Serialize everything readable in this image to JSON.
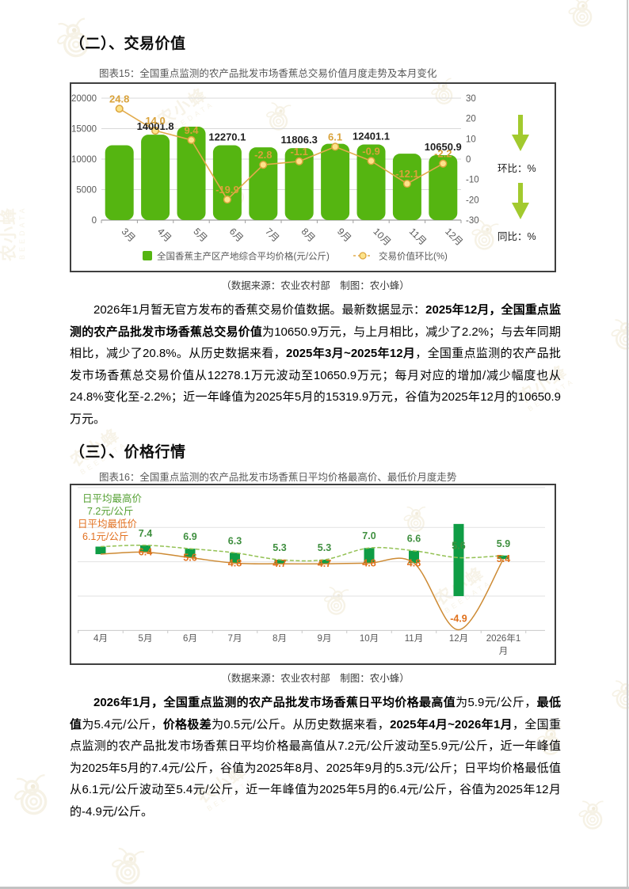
{
  "page": {
    "heading_trade": "（二）、交易价值",
    "heading_price": "（三）、价格行情",
    "source_line": "（数据来源：农业农村部　制图：农小蜂）",
    "watermark_text": "农小蜂",
    "watermark_sub": "BEEDATA"
  },
  "chart15": {
    "title": "图表15：全国重点监测的农产品批发市场香蕉总交易价值月度走势及本月变化",
    "side_mom": "环比：%",
    "side_yoy": "同比：%"
  },
  "chart16": {
    "title": "图表16：全国重点监测的农产品批发市场香蕉日平均价格最高价、最低价月度走势"
  },
  "chart_data": [
    {
      "id": "chart15",
      "type": "bar",
      "title": "全国重点监测的农产品批发市场香蕉总交易价值月度走势及本月变化",
      "categories": [
        "3月",
        "4月",
        "5月",
        "6月",
        "7月",
        "8月",
        "9月",
        "10月",
        "11月",
        "12月"
      ],
      "series": [
        {
          "name": "全国香蕉主产区产地综合平均价格(元/公斤)",
          "type": "bar",
          "axis": "left",
          "values": [
            12278.1,
            14001.8,
            15319.9,
            12270.1,
            11930,
            11806.3,
            12510,
            12401.1,
            10890,
            10650.9
          ],
          "labels": [
            null,
            "14001.8",
            null,
            "12270.1",
            null,
            "11806.3",
            null,
            "12401.1",
            null,
            "10650.9"
          ],
          "color": "#55b511"
        },
        {
          "name": "交易价值环比(%)",
          "type": "line",
          "axis": "right",
          "values": [
            24.8,
            14.0,
            9.4,
            -19.9,
            -2.8,
            -1.1,
            6.1,
            -0.9,
            -12.1,
            -2.2
          ],
          "labels": [
            "24.8",
            "14.0",
            "9.4",
            "-19.9",
            "-2.8",
            "-1.1",
            "6.1",
            "-0.9",
            "-12.1",
            "-2.2"
          ],
          "color": "#e2ab4c",
          "marker_fill": "#fce38a",
          "marker_stroke": "#dca53e",
          "label_color": "#d9a23a"
        }
      ],
      "left_axis": {
        "ticks": [
          20000,
          15000,
          10000,
          5000,
          0
        ],
        "min": 0,
        "max": 20000
      },
      "right_axis": {
        "ticks": [
          30,
          20,
          10,
          0,
          -10,
          -20,
          -30
        ],
        "min": -30,
        "max": 30
      },
      "legend_position": "bottom"
    },
    {
      "id": "chart16",
      "type": "line",
      "title": "全国重点监测的农产品批发市场香蕉日平均价格最高价、最低价月度走势",
      "categories": [
        "4月",
        "5月",
        "6月",
        "7月",
        "8月",
        "9月",
        "10月",
        "11月",
        "12月",
        "2026年1月"
      ],
      "series": [
        {
          "name": "日平均最高价",
          "values": [
            7.2,
            7.4,
            6.9,
            6.3,
            5.3,
            5.3,
            7.0,
            6.6,
            5.6,
            5.9
          ],
          "labels": [
            null,
            "7.4",
            "6.9",
            "6.3",
            "5.3",
            "5.3",
            "7.0",
            "6.6",
            "5.6",
            "5.9"
          ],
          "color": "#93c153",
          "label_color": "#3f8f3f",
          "dashed": true
        },
        {
          "name": "日平均最低价",
          "values": [
            6.1,
            6.4,
            5.6,
            4.8,
            4.7,
            4.7,
            4.8,
            4.8,
            -4.9,
            5.4
          ],
          "labels": [
            null,
            "6.4",
            "5.6",
            "4.8",
            "4.7",
            "4.7",
            "4.8",
            "4.8",
            "-4.9",
            "5.4"
          ],
          "color": "#cd8a33",
          "label_color": "#e0711d",
          "dashed": false
        }
      ],
      "range_bar_color": "#0f9d45",
      "header_labels": [
        {
          "line1": "日平均最高价",
          "line2": "7.2元/公斤",
          "color": "#55a033"
        },
        {
          "line1": "日平均最低价",
          "line2": "6.1元/公斤",
          "color": "#e2701f"
        }
      ],
      "ylim": [
        -6,
        16
      ],
      "grid_values": [
        15.8,
        10,
        5,
        0,
        -5
      ]
    }
  ],
  "paragraphs": {
    "trade": [
      {
        "b": false,
        "t": "2026年1月暂无官方发布的香蕉交易价值数据。最新数据显示："
      },
      {
        "b": true,
        "t": "2025年12月，全国重点监测的农产品批发市场香蕉总交易价值"
      },
      {
        "b": false,
        "t": "为10650.9万元，与上月相比，减少了2.2%；与去年同期相比，减少了20.8%。从历史数据来看，"
      },
      {
        "b": true,
        "t": "2025年3月~2025年12月"
      },
      {
        "b": false,
        "t": "，全国重点监测的农产品批发市场香蕉总交易价值从12278.1万元波动至10650.9万元；每月对应的增加/减少幅度也从24.8%变化至-2.2%；近一年峰值为2025年5月的15319.9万元，谷值为2025年12月的10650.9万元。"
      }
    ],
    "price": [
      {
        "b": true,
        "t": "2026年1月，全国重点监测的农产品批发市场香蕉日平均价格最高值"
      },
      {
        "b": false,
        "t": "为5.9元/公斤，"
      },
      {
        "b": true,
        "t": "最低值"
      },
      {
        "b": false,
        "t": "为5.4元/公斤，"
      },
      {
        "b": true,
        "t": "价格极差"
      },
      {
        "b": false,
        "t": "为0.5元/公斤。从历史数据来看，"
      },
      {
        "b": true,
        "t": "2025年4月~2026年1月"
      },
      {
        "b": false,
        "t": "，全国重点监测的农产品批发市场香蕉日平均价格最高值从7.2元/公斤波动至5.9元/公斤，近一年峰值为2025年5月的7.4元/公斤，谷值为2025年8月、2025年9月的5.3元/公斤；日平均价格最低值从6.1元/公斤波动至5.4元/公斤，近一年峰值为2025年5月的6.4元/公斤，谷值为2025年12月的-4.9元/公斤。"
      }
    ]
  }
}
